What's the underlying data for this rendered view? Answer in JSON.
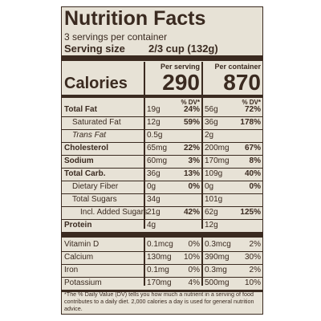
{
  "header": {
    "title": "Nutrition Facts",
    "servings": "3 servings per container",
    "serving_size_label": "Serving size",
    "serving_size_value": "2/3 cup (132g)"
  },
  "columns": {
    "per_serving": "Per serving",
    "per_container": "Per container",
    "dv": "% DV*"
  },
  "calories": {
    "label": "Calories",
    "per_serving": "290",
    "per_container": "870"
  },
  "nutrients": [
    {
      "name": "Total Fat",
      "bold": true,
      "indent": 0,
      "serving_amount": "19g",
      "serving_dv": "24%",
      "container_amount": "56g",
      "container_dv": "72%"
    },
    {
      "name": "Saturated Fat",
      "bold": false,
      "indent": 1,
      "serving_amount": "12g",
      "serving_dv": "59%",
      "container_amount": "36g",
      "container_dv": "178%"
    },
    {
      "name": "Trans Fat",
      "bold": false,
      "italic": true,
      "indent": 1,
      "serving_amount": "0.5g",
      "serving_dv": null,
      "container_amount": "2g",
      "container_dv": null
    },
    {
      "name": "Cholesterol",
      "bold": true,
      "indent": 0,
      "serving_amount": "65mg",
      "serving_dv": "22%",
      "container_amount": "200mg",
      "container_dv": "67%"
    },
    {
      "name": "Sodium",
      "bold": true,
      "indent": 0,
      "serving_amount": "60mg",
      "serving_dv": "3%",
      "container_amount": "170mg",
      "container_dv": "8%"
    },
    {
      "name": "Total Carb.",
      "bold": true,
      "indent": 0,
      "serving_amount": "36g",
      "serving_dv": "13%",
      "container_amount": "109g",
      "container_dv": "40%"
    },
    {
      "name": "Dietary Fiber",
      "bold": false,
      "indent": 1,
      "serving_amount": "0g",
      "serving_dv": "0%",
      "container_amount": "0g",
      "container_dv": "0%"
    },
    {
      "name": "Total Sugars",
      "bold": false,
      "indent": 1,
      "serving_amount": "34g",
      "serving_dv": null,
      "container_amount": "101g",
      "container_dv": null
    },
    {
      "name": "Incl. Added Sugars",
      "bold": false,
      "indent": 2,
      "serving_amount": "21g",
      "serving_dv": "42%",
      "container_amount": "62g",
      "container_dv": "125%"
    },
    {
      "name": "Protein",
      "bold": true,
      "indent": 0,
      "serving_amount": "4g",
      "serving_dv": null,
      "container_amount": "12g",
      "container_dv": null
    }
  ],
  "vitamins": [
    {
      "name": "Vitamin D",
      "serving_amount": "0.1mcg",
      "serving_dv": "0%",
      "container_amount": "0.3mcg",
      "container_dv": "2%"
    },
    {
      "name": "Calcium",
      "serving_amount": "130mg",
      "serving_dv": "10%",
      "container_amount": "390mg",
      "container_dv": "30%"
    },
    {
      "name": "Iron",
      "serving_amount": "0.1mg",
      "serving_dv": "0%",
      "container_amount": "0.3mg",
      "container_dv": "2%"
    },
    {
      "name": "Potassium",
      "serving_amount": "170mg",
      "serving_dv": "4%",
      "container_amount": "500mg",
      "container_dv": "10%"
    }
  ],
  "footnote": "*The % Daily Value (DV) tells you how much a nutrient in a serving of food contributes to a daily diet. 2,000 calories a day is used for general nutrition advice."
}
